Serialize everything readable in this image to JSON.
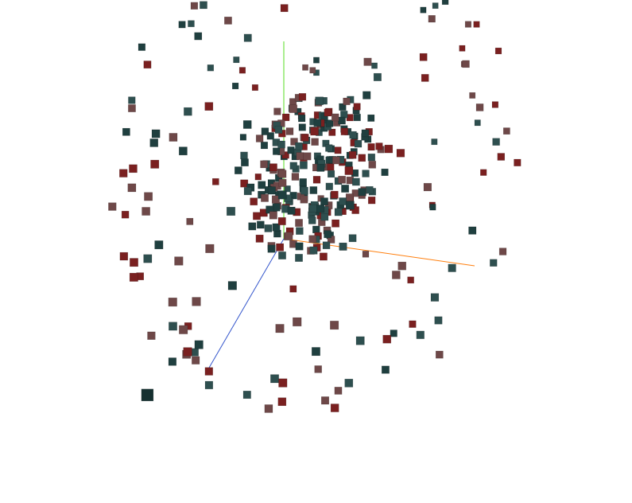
{
  "chart_data": {
    "type": "scatter",
    "title": "",
    "xlabel": "",
    "ylabel": "",
    "zlabel": "",
    "projection": "3d",
    "grid": false,
    "legend": false,
    "axes": {
      "x_color": "#ff7f0e",
      "y_color": "#55dd22",
      "z_color": "#3355cc"
    },
    "colors": [
      "#1f3f3f",
      "#7a2020",
      "#6e4848",
      "#2e4f4f"
    ],
    "series": [
      {
        "shape": "outer_shell",
        "n": 150,
        "radius": 3.0,
        "center": [
          0,
          0,
          0
        ]
      },
      {
        "shape": "inner_core",
        "n": 250,
        "radius": 1.1,
        "center": [
          0,
          0,
          0
        ]
      },
      {
        "shape": "near_points",
        "points": [
          [
            -0.5,
            0.3,
            4.2
          ],
          [
            -2.6,
            0.2,
            6.5
          ]
        ]
      }
    ]
  }
}
